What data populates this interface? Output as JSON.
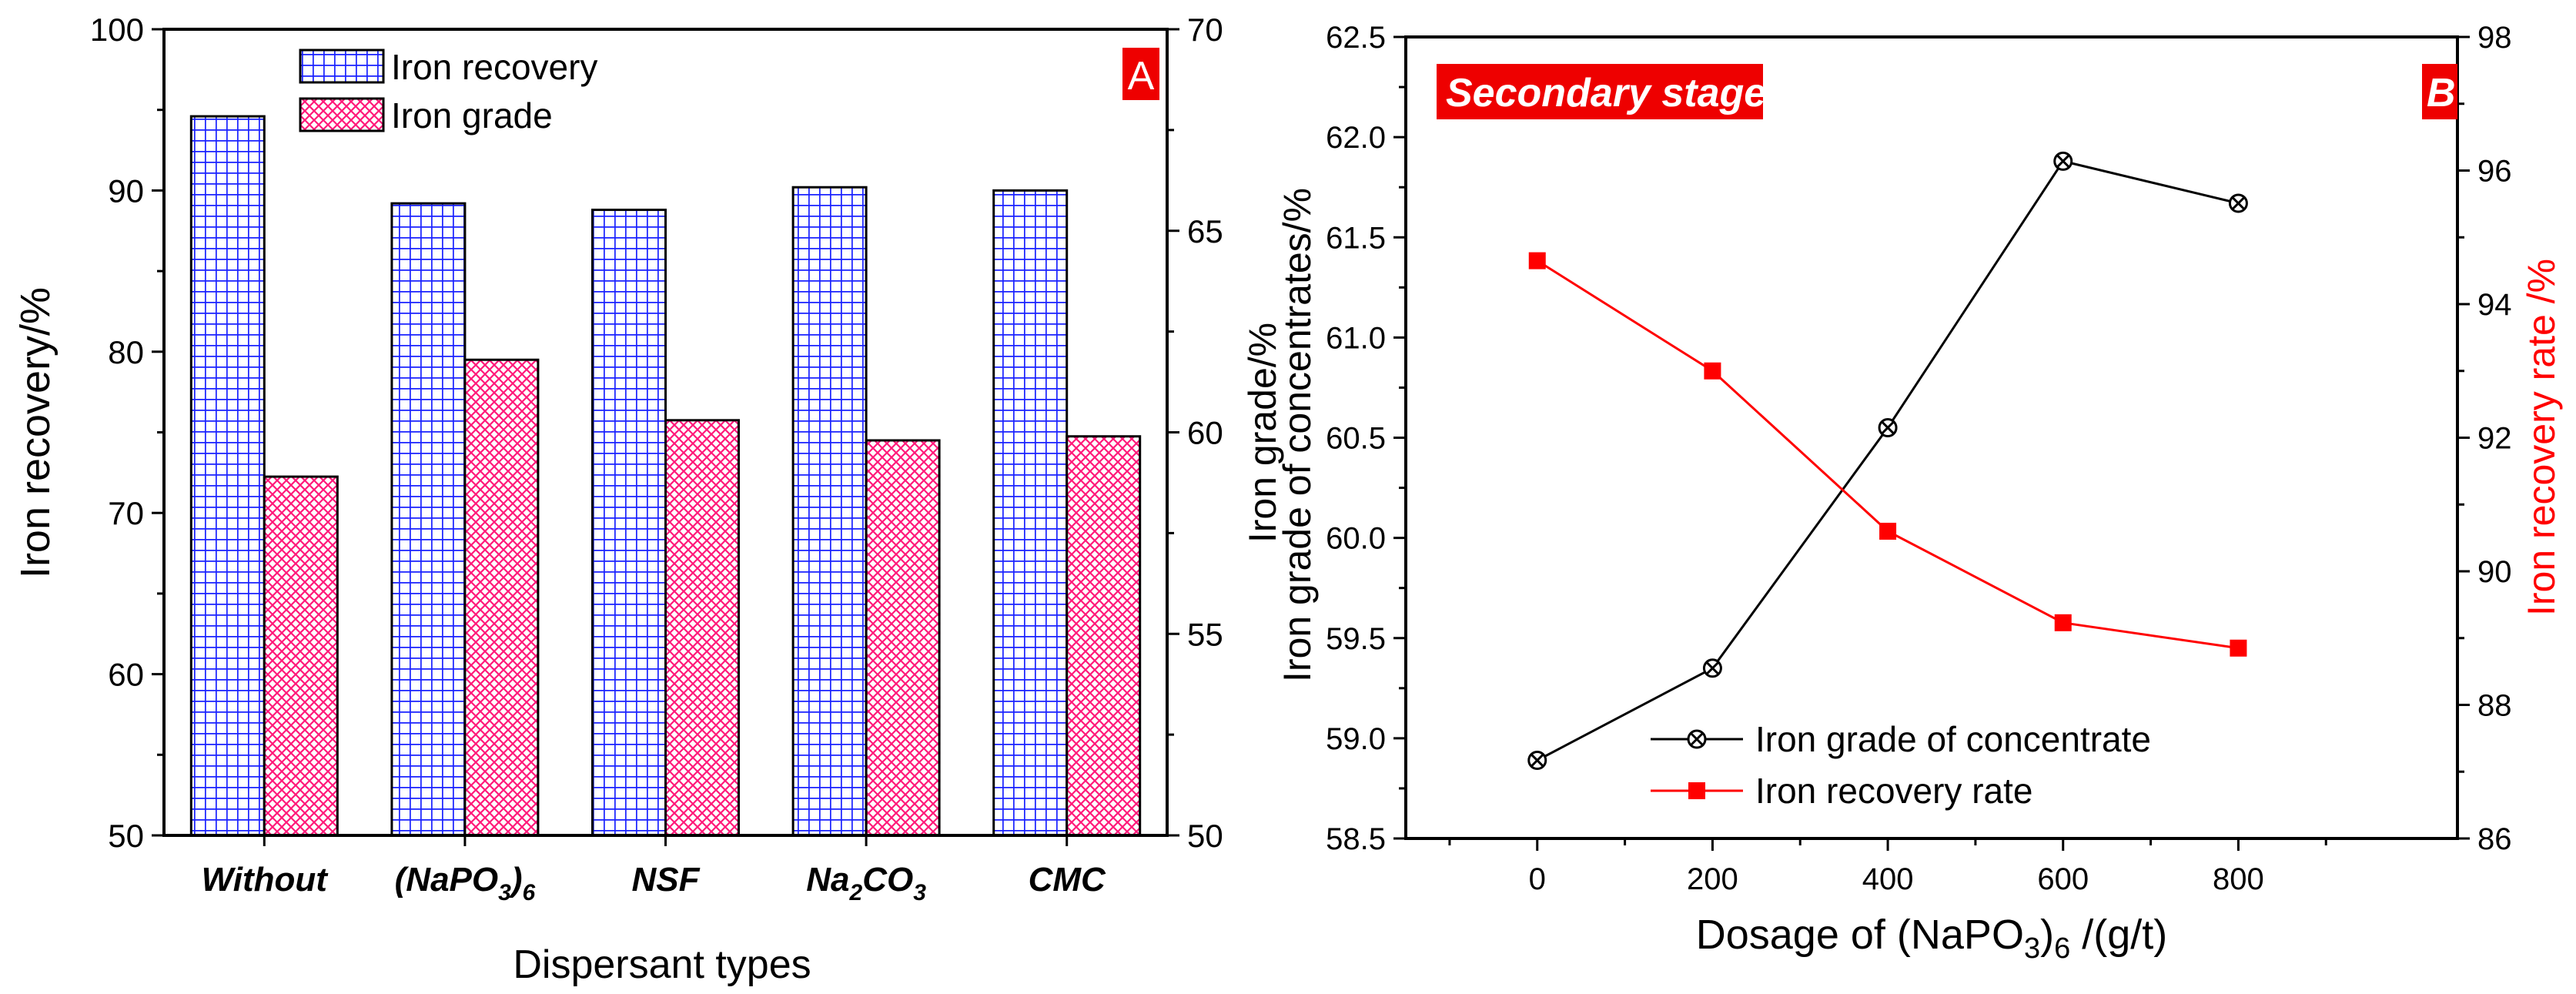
{
  "chart_data": [
    {
      "type": "bar",
      "panel_label": "A",
      "categories": [
        {
          "main": "Without",
          "sub": "",
          "tail": ""
        },
        {
          "main": "(NaPO",
          "sub": "3",
          "tail": ")",
          "sub2": "6"
        },
        {
          "main": "NSF",
          "sub": "",
          "tail": ""
        },
        {
          "main": "Na",
          "sub": "2",
          "tail": "CO",
          "sub2": "3"
        },
        {
          "main": "CMC",
          "sub": "",
          "tail": ""
        }
      ],
      "series": [
        {
          "name": "Iron recovery",
          "axis": "left",
          "color": "#0000ff",
          "values": [
            94.6,
            89.2,
            88.8,
            90.2,
            90.0
          ]
        },
        {
          "name": "Iron grade",
          "axis": "right",
          "color": "#ff0066",
          "values": [
            58.9,
            61.8,
            60.3,
            59.8,
            59.9
          ]
        }
      ],
      "xlabel": "Dispersant types",
      "ylabel": "Iron recovery/%",
      "ylabel_right": "Iron grade/%",
      "ylim": [
        50,
        100
      ],
      "yticks": [
        "50",
        "60",
        "70",
        "80",
        "90",
        "100"
      ],
      "ylim_right": [
        50,
        70
      ],
      "yticks_right": [
        "50",
        "55",
        "60",
        "65",
        "70"
      ],
      "legend_position": "top-center"
    },
    {
      "type": "line",
      "panel_label": "B",
      "annotation": "Secondary stage",
      "x": [
        0,
        200,
        400,
        600,
        800
      ],
      "series": [
        {
          "name": "Iron grade of concentrate",
          "axis": "left",
          "color": "#000000",
          "marker": "circle-x",
          "values": [
            58.89,
            59.35,
            60.55,
            61.88,
            61.67
          ]
        },
        {
          "name": "Iron recovery rate",
          "axis": "right",
          "color": "#ff0000",
          "marker": "square",
          "values": [
            94.65,
            93.0,
            90.6,
            89.23,
            88.85
          ]
        }
      ],
      "xlabel": {
        "main": "Dosage of (NaPO",
        "sub": "3",
        "tail": ")",
        "sub2": "6",
        "end": " /(g/t)"
      },
      "ylabel": "Iron grade of concentrates/%",
      "ylabel_right": "Iron recovery rate /%",
      "xlim": [
        -150,
        1050
      ],
      "xticks": [
        "0",
        "200",
        "400",
        "600",
        "800"
      ],
      "ylim": [
        58.5,
        62.5
      ],
      "yticks": [
        "58.5",
        "59.0",
        "59.5",
        "60.0",
        "60.5",
        "61.0",
        "61.5",
        "62.0",
        "62.5"
      ],
      "ylim_right": [
        86,
        98
      ],
      "yticks_right": [
        "86",
        "88",
        "90",
        "92",
        "94",
        "96",
        "98"
      ],
      "legend_position": "bottom-center"
    }
  ]
}
